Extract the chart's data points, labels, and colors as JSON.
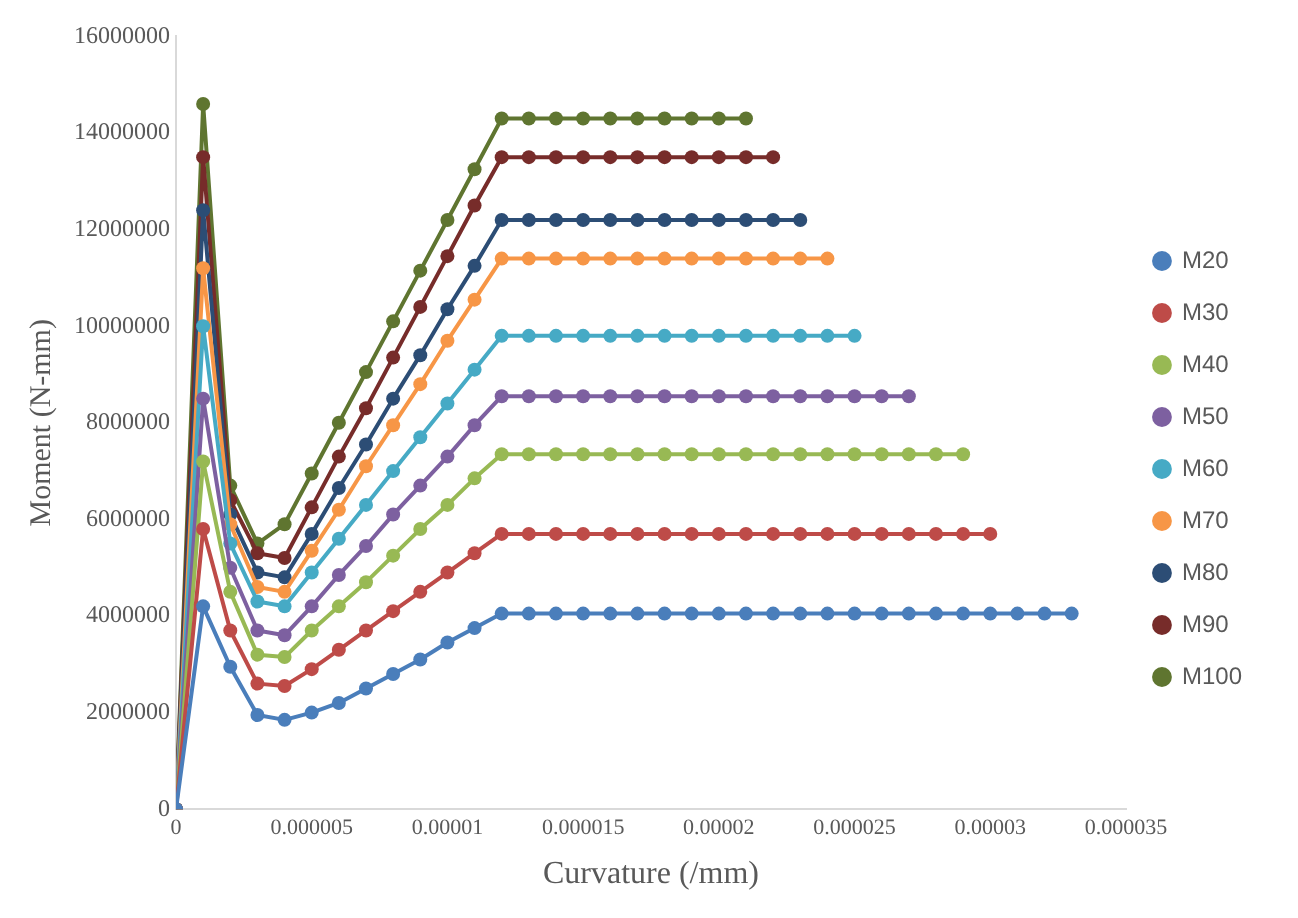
{
  "chart_data": {
    "type": "line",
    "xlabel": "Curvature (/mm)",
    "ylabel": "Moment (N-mm)",
    "x": [
      0,
      1e-06,
      2e-06,
      3e-06,
      4e-06,
      5e-06,
      6e-06,
      7e-06,
      8e-06,
      9e-06,
      1e-05,
      1.1e-05,
      1.2e-05,
      1.3e-05,
      1.4e-05,
      1.5e-05,
      1.6e-05,
      1.7e-05,
      1.8e-05,
      1.9e-05,
      2e-05,
      2.1e-05,
      2.2e-05,
      2.3e-05,
      2.4e-05,
      2.5e-05,
      2.6e-05,
      2.7e-05,
      2.8e-05,
      2.9e-05,
      3e-05,
      3.1e-05,
      3.2e-05,
      3.3e-05
    ],
    "xlim": [
      0,
      3.5e-05
    ],
    "xticks": [
      0,
      {
        "value": 5e-06,
        "label": "0.000005"
      },
      {
        "value": 1e-05,
        "label": "0.00001"
      },
      {
        "value": 1.5e-05,
        "label": "0.000015"
      },
      {
        "value": 2e-05,
        "label": "0.00002"
      },
      {
        "value": 2.5e-05,
        "label": "0.000025"
      },
      {
        "value": 3e-05,
        "label": "0.00003"
      },
      {
        "value": 3.5e-05,
        "label": "0.000035"
      }
    ],
    "ylim": [
      0,
      16000000
    ],
    "yticks": [
      0,
      2000000,
      4000000,
      6000000,
      8000000,
      10000000,
      12000000,
      14000000,
      16000000
    ],
    "grid": false,
    "legend": "right",
    "marker": "circle",
    "line_style": "solid",
    "series": [
      {
        "name": "M20",
        "color": "#4a7ebb",
        "values": [
          0,
          4200000,
          2950000,
          1950000,
          1850000,
          2000000,
          2200000,
          2500000,
          2800000,
          3100000,
          3450000,
          3750000,
          4050000,
          4050000,
          4050000,
          4050000,
          4050000,
          4050000,
          4050000,
          4050000,
          4050000,
          4050000,
          4050000,
          4050000,
          4050000,
          4050000,
          4050000,
          4050000,
          4050000,
          4050000,
          4050000,
          4050000,
          4050000,
          4050000
        ]
      },
      {
        "name": "M30",
        "color": "#be4b48",
        "values": [
          0,
          5800000,
          3700000,
          2600000,
          2550000,
          2900000,
          3300000,
          3700000,
          4100000,
          4500000,
          4900000,
          5300000,
          5700000,
          5700000,
          5700000,
          5700000,
          5700000,
          5700000,
          5700000,
          5700000,
          5700000,
          5700000,
          5700000,
          5700000,
          5700000,
          5700000,
          5700000,
          5700000,
          5700000,
          5700000,
          5700000,
          null,
          null,
          null
        ]
      },
      {
        "name": "M40",
        "color": "#98b954",
        "values": [
          0,
          7200000,
          4500000,
          3200000,
          3150000,
          3700000,
          4200000,
          4700000,
          5250000,
          5800000,
          6300000,
          6850000,
          7350000,
          7350000,
          7350000,
          7350000,
          7350000,
          7350000,
          7350000,
          7350000,
          7350000,
          7350000,
          7350000,
          7350000,
          7350000,
          7350000,
          7350000,
          7350000,
          7350000,
          7350000,
          null,
          null,
          null,
          null
        ]
      },
      {
        "name": "M50",
        "color": "#7d60a0",
        "values": [
          0,
          8500000,
          5000000,
          3700000,
          3600000,
          4200000,
          4850000,
          5450000,
          6100000,
          6700000,
          7300000,
          7950000,
          8550000,
          8550000,
          8550000,
          8550000,
          8550000,
          8550000,
          8550000,
          8550000,
          8550000,
          8550000,
          8550000,
          8550000,
          8550000,
          8550000,
          8550000,
          8550000,
          null,
          null,
          null,
          null,
          null,
          null
        ]
      },
      {
        "name": "M60",
        "color": "#46aac5",
        "values": [
          0,
          10000000,
          5500000,
          4300000,
          4200000,
          4900000,
          5600000,
          6300000,
          7000000,
          7700000,
          8400000,
          9100000,
          9800000,
          9800000,
          9800000,
          9800000,
          9800000,
          9800000,
          9800000,
          9800000,
          9800000,
          9800000,
          9800000,
          9800000,
          9800000,
          9800000,
          null,
          null,
          null,
          null,
          null,
          null,
          null,
          null
        ]
      },
      {
        "name": "M70",
        "color": "#f79646",
        "values": [
          0,
          11200000,
          5900000,
          4600000,
          4500000,
          5350000,
          6200000,
          7100000,
          7950000,
          8800000,
          9700000,
          10550000,
          11400000,
          11400000,
          11400000,
          11400000,
          11400000,
          11400000,
          11400000,
          11400000,
          11400000,
          11400000,
          11400000,
          11400000,
          11400000,
          null,
          null,
          null,
          null,
          null,
          null,
          null,
          null,
          null
        ]
      },
      {
        "name": "M80",
        "color": "#2c4d75",
        "values": [
          0,
          12400000,
          6100000,
          4900000,
          4800000,
          5700000,
          6650000,
          7550000,
          8500000,
          9400000,
          10350000,
          11250000,
          12200000,
          12200000,
          12200000,
          12200000,
          12200000,
          12200000,
          12200000,
          12200000,
          12200000,
          12200000,
          12200000,
          12200000,
          null,
          null,
          null,
          null,
          null,
          null,
          null,
          null,
          null,
          null
        ]
      },
      {
        "name": "M90",
        "color": "#772c2a",
        "values": [
          0,
          13500000,
          6400000,
          5300000,
          5200000,
          6250000,
          7300000,
          8300000,
          9350000,
          10400000,
          11450000,
          12500000,
          13500000,
          13500000,
          13500000,
          13500000,
          13500000,
          13500000,
          13500000,
          13500000,
          13500000,
          13500000,
          13500000,
          null,
          null,
          null,
          null,
          null,
          null,
          null,
          null,
          null,
          null,
          null
        ]
      },
      {
        "name": "M100",
        "color": "#5f7530",
        "values": [
          0,
          14600000,
          6700000,
          5500000,
          5900000,
          6950000,
          8000000,
          9050000,
          10100000,
          11150000,
          12200000,
          13250000,
          14300000,
          14300000,
          14300000,
          14300000,
          14300000,
          14300000,
          14300000,
          14300000,
          14300000,
          14300000,
          null,
          null,
          null,
          null,
          null,
          null,
          null,
          null,
          null,
          null,
          null,
          null
        ]
      }
    ]
  }
}
